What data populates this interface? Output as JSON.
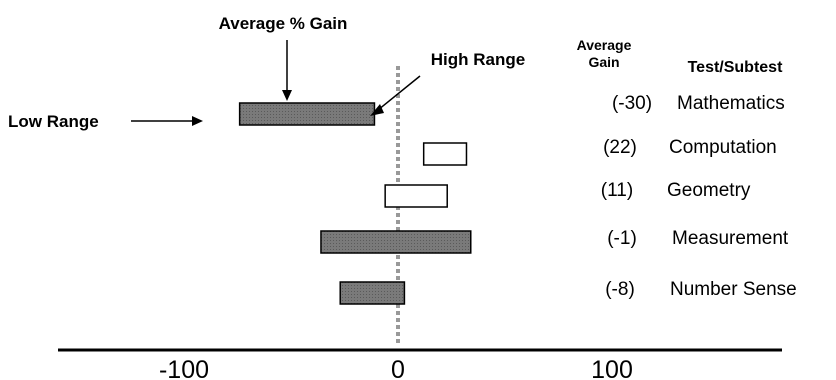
{
  "chart_data": {
    "type": "bar",
    "subtype": "floating-range",
    "x_ticks": [
      {
        "value": -100,
        "label": "-100"
      },
      {
        "value": 0,
        "label": "0"
      },
      {
        "value": 100,
        "label": "100"
      }
    ],
    "xlim": [
      -135,
      170
    ],
    "annotations": {
      "average_gain_label": "Average % Gain",
      "high_range_label": "High Range",
      "low_range_label": "Low Range"
    },
    "column_headers": {
      "gain_line1": "Average",
      "gain_line2": "Gain",
      "test": "Test/Subtest"
    },
    "rows": [
      {
        "test": "Mathematics",
        "gain_label": "(-30)",
        "average": -30,
        "low": -74,
        "high": -11,
        "filled": true
      },
      {
        "test": "Computation",
        "gain_label": "(22)",
        "average": 22,
        "low": 12,
        "high": 32,
        "filled": false
      },
      {
        "test": "Geometry",
        "gain_label": "(11)",
        "average": 11,
        "low": -6,
        "high": 23,
        "filled": false
      },
      {
        "test": "Measurement",
        "gain_label": "(-1)",
        "average": -1,
        "low": -36,
        "high": 34,
        "filled": true
      },
      {
        "test": "Number Sense",
        "gain_label": "(-8)",
        "average": -8,
        "low": -27,
        "high": 3,
        "filled": true
      }
    ],
    "colors": {
      "filled_bar": "#808080",
      "empty_bar": "#ffffff",
      "bar_stroke": "#000000",
      "zero_line": "#999999",
      "zero_tick_label": "#999999"
    }
  }
}
